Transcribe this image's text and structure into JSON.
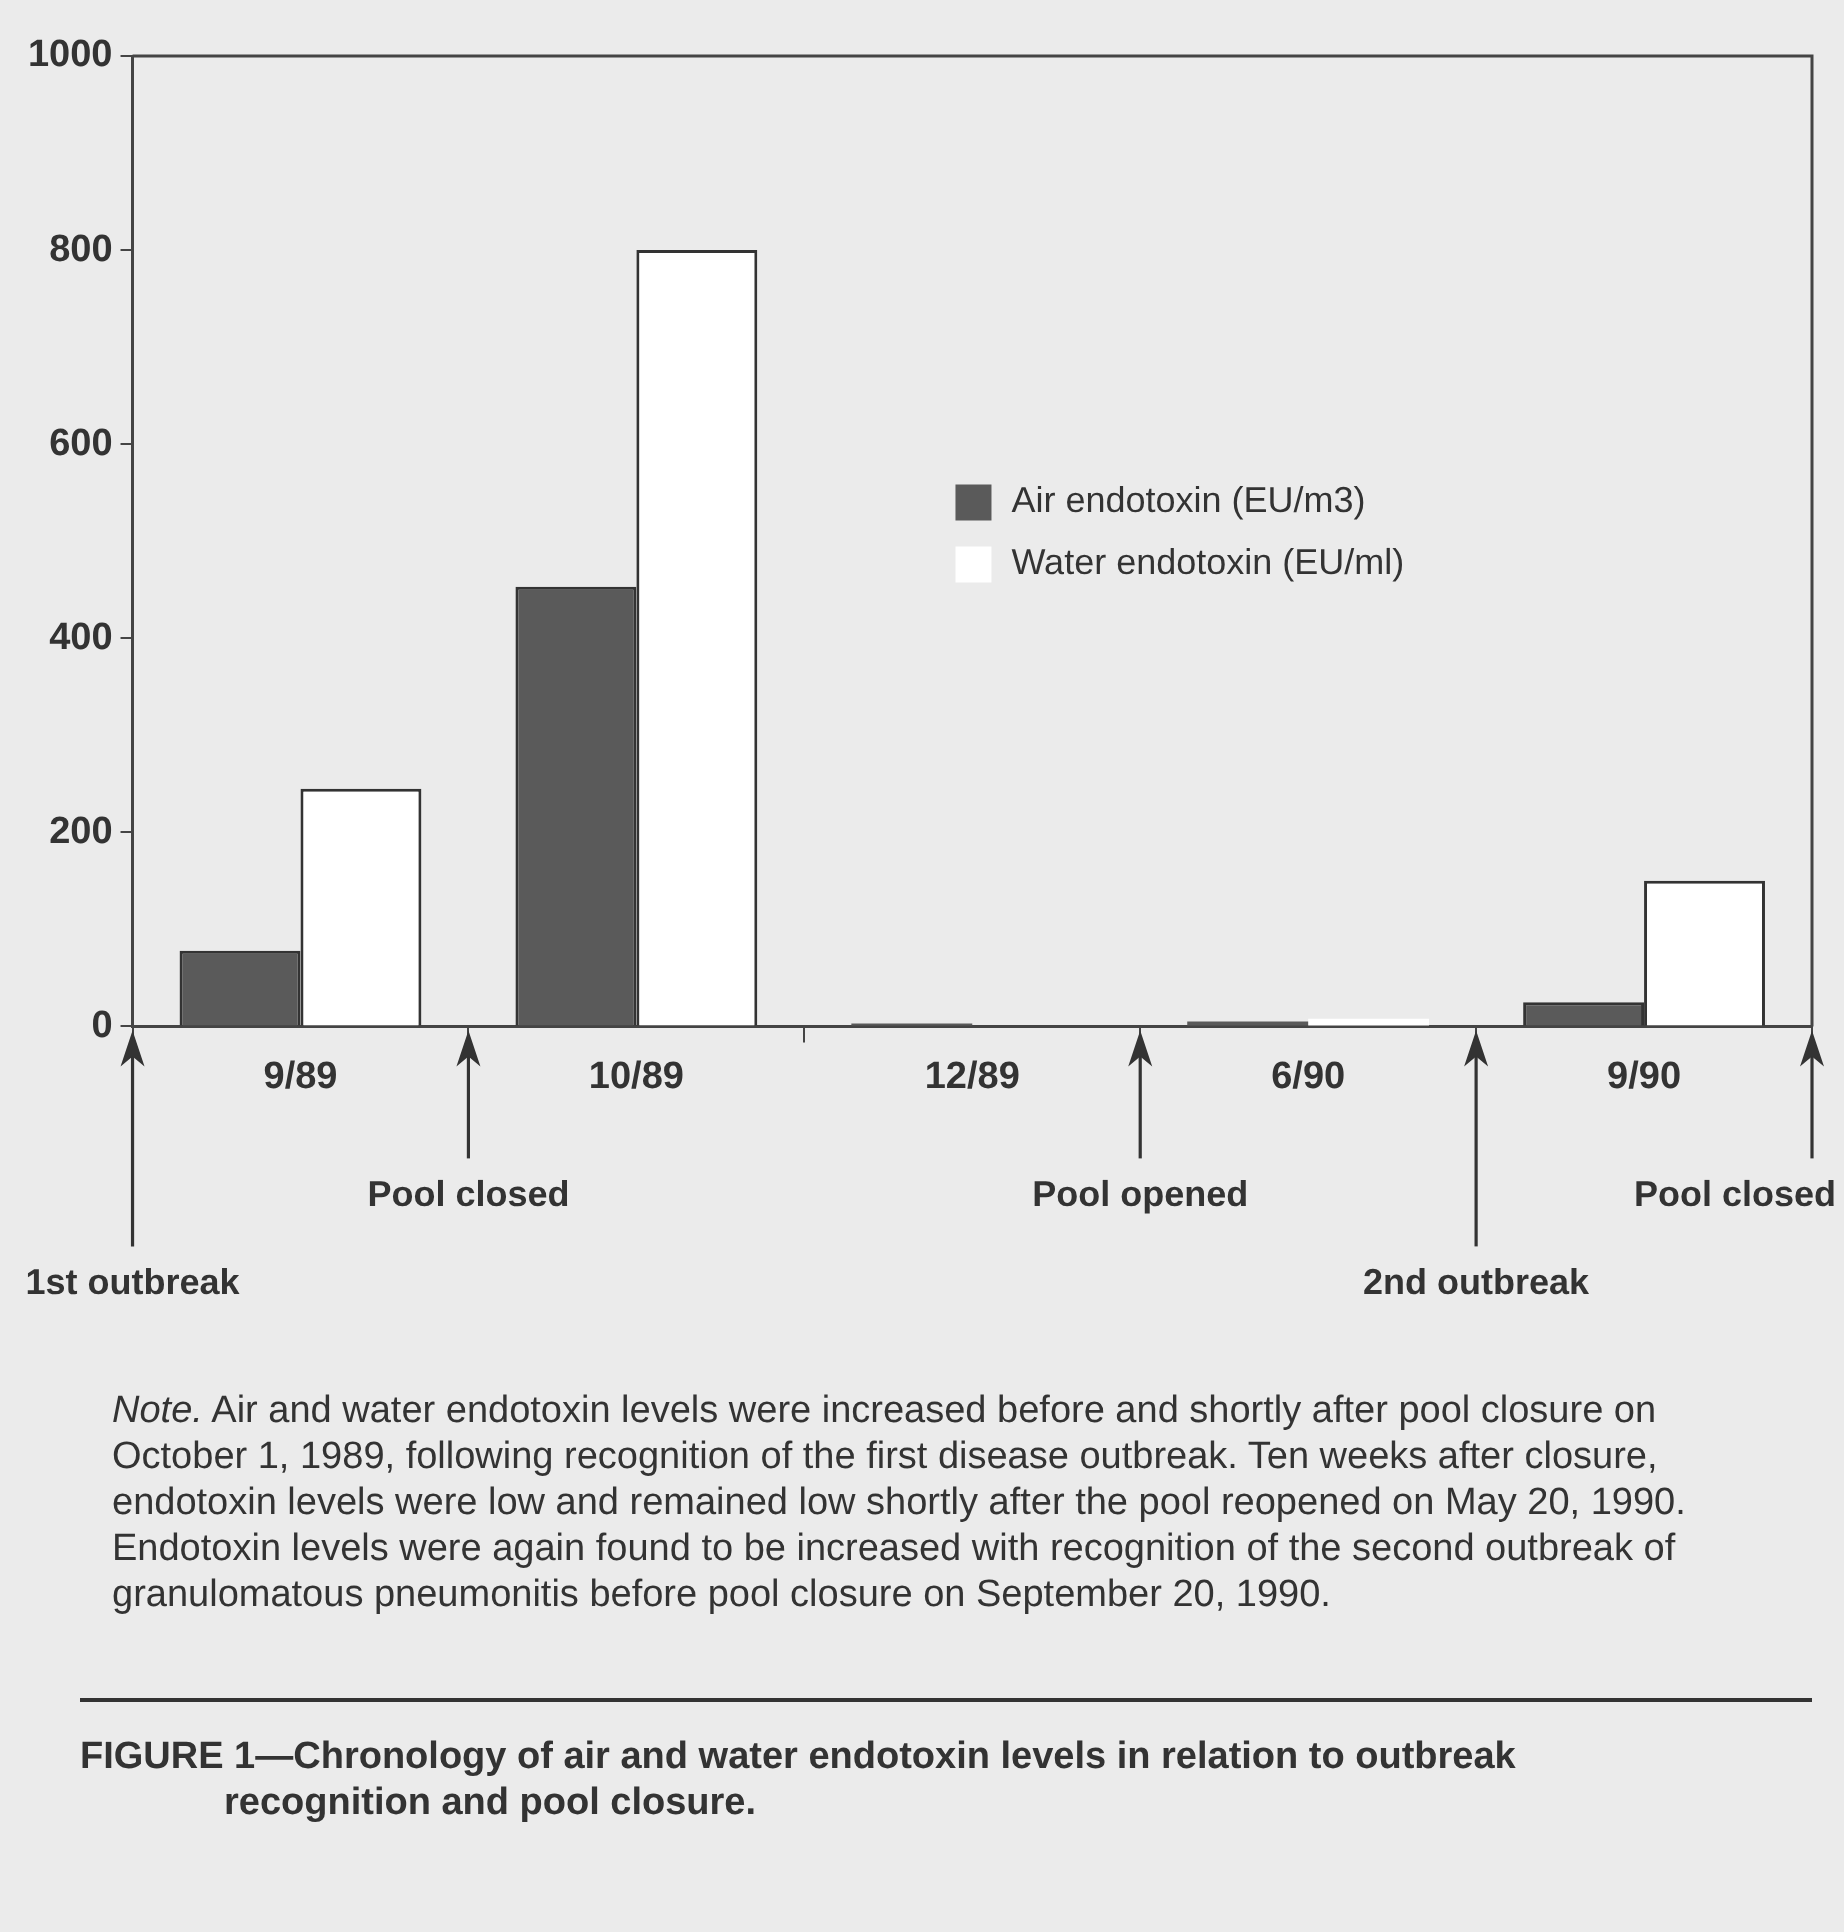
{
  "chart_data": {
    "type": "bar",
    "title": "FIGURE 1—Chronology of air and water endotoxin levels in relation to outbreak recognition and pool closure.",
    "categories": [
      "9/89",
      "10/89",
      "12/89",
      "6/90",
      "9/90"
    ],
    "series": [
      {
        "name": "Air endotoxin (EU/m3)",
        "color": "#5a5a5a",
        "values": [
          78,
          453,
          3,
          5,
          25
        ]
      },
      {
        "name": "Water endotoxin (EU/ml)",
        "color": "#ffffff",
        "values": [
          245,
          800,
          null,
          8,
          150
        ]
      }
    ],
    "ylim": [
      0,
      1000
    ],
    "yticks": [
      0,
      200,
      400,
      600,
      800,
      1000
    ],
    "grid": false,
    "legend": "center",
    "annotations": [
      "1st outbreak",
      "Pool closed",
      "Pool opened",
      "2nd outbreak",
      "Pool closed",
      "Note. Air and water endotoxin levels were increased before and shortly after pool closure on October 1, 1989, following recognition of the first disease outbreak. Ten weeks after closure, endotoxin levels were low and remained low shortly after the pool reopened on May 20, 1990. Endotoxin levels were again found to be increased with recognition of the second outbreak of granulomatous pneumonitis before pool closure on September 20, 1990."
    ]
  }
}
